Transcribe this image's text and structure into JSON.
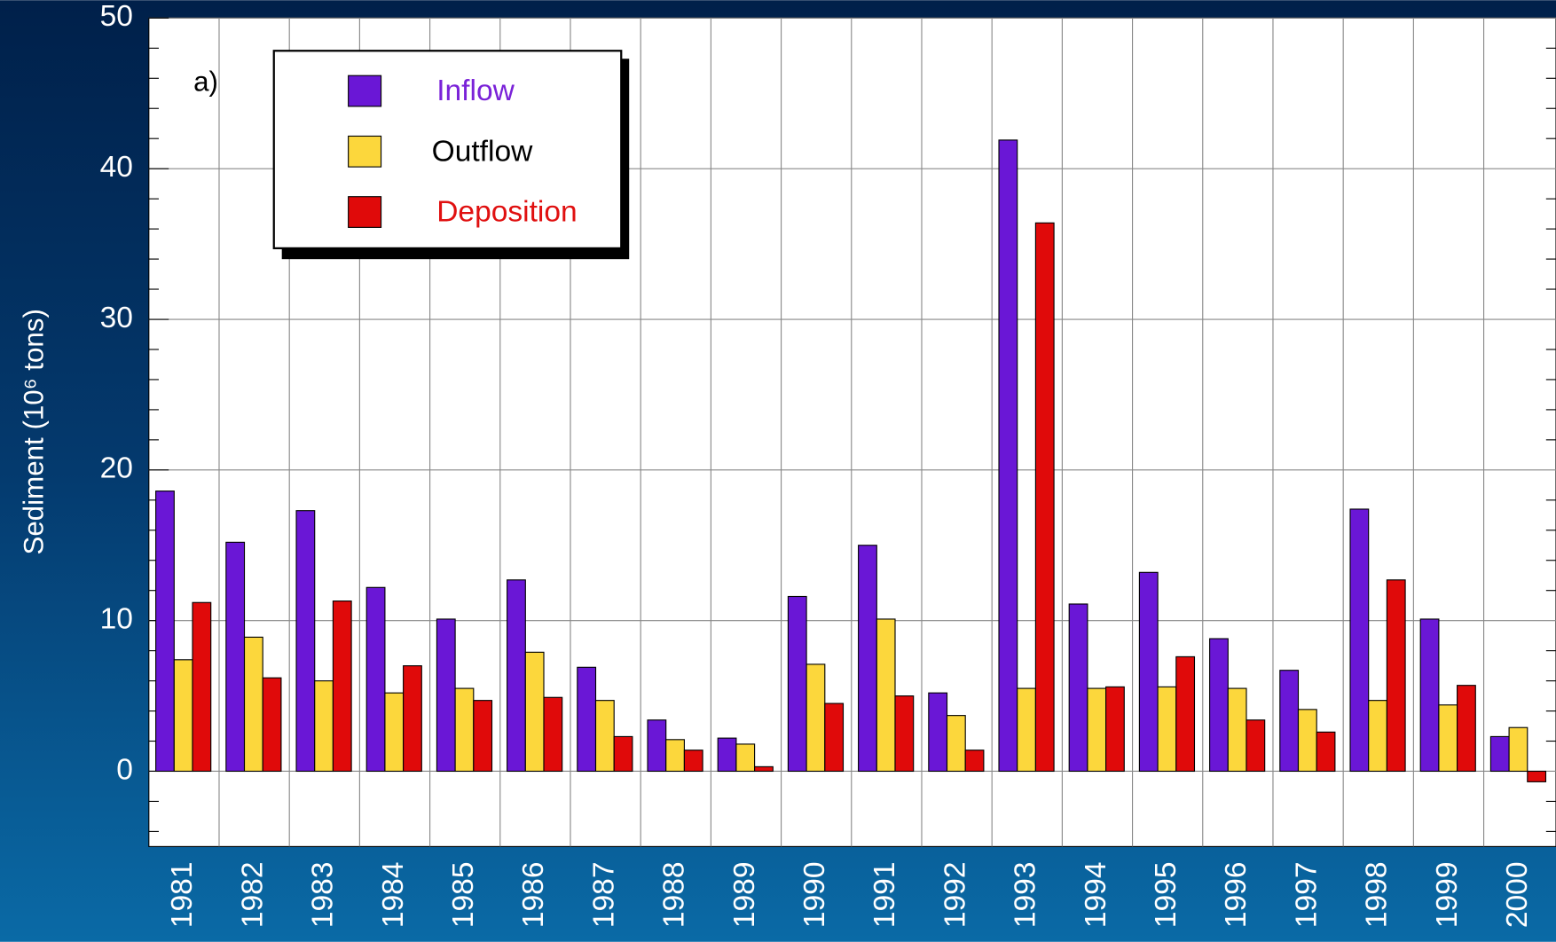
{
  "chart_data": {
    "type": "bar",
    "y_label": "Sediment (10⁶ tons)",
    "annotation": "a)",
    "categories": [
      "1981",
      "1982",
      "1983",
      "1984",
      "1985",
      "1986",
      "1987",
      "1988",
      "1989",
      "1990",
      "1991",
      "1992",
      "1993",
      "1994",
      "1995",
      "1996",
      "1997",
      "1998",
      "1999",
      "2000"
    ],
    "series": [
      {
        "name": "Inflow",
        "color": "#6a17d6",
        "values": [
          18.6,
          15.2,
          17.3,
          12.2,
          10.1,
          12.7,
          6.9,
          3.4,
          2.2,
          11.6,
          15.0,
          5.2,
          41.9,
          11.1,
          13.2,
          8.8,
          6.7,
          17.4,
          10.1,
          2.3
        ]
      },
      {
        "name": "Outflow",
        "color": "#fcd73c",
        "values": [
          7.4,
          8.9,
          6.0,
          5.2,
          5.5,
          7.9,
          4.7,
          2.1,
          1.8,
          7.1,
          10.1,
          3.7,
          5.5,
          5.5,
          5.6,
          5.5,
          4.1,
          4.7,
          4.4,
          2.9
        ]
      },
      {
        "name": "Deposition",
        "color": "#e00a0a",
        "values": [
          11.2,
          6.2,
          11.3,
          7.0,
          4.7,
          4.9,
          2.3,
          1.4,
          0.3,
          4.5,
          5.0,
          1.4,
          36.4,
          5.6,
          7.6,
          3.4,
          2.6,
          12.7,
          5.7,
          -0.7
        ]
      }
    ],
    "legend_text_colors": [
      "#7a22d8",
      "#000000",
      "#e01010"
    ],
    "ylim": [
      -5,
      50
    ],
    "yticks": [
      0,
      10,
      20,
      30,
      40,
      50
    ],
    "yminorticks": [
      -4,
      -2,
      2,
      4,
      6,
      8,
      12,
      14,
      16,
      18,
      22,
      24,
      26,
      28,
      32,
      34,
      36,
      38,
      42,
      44,
      46,
      48
    ],
    "grid": true
  }
}
